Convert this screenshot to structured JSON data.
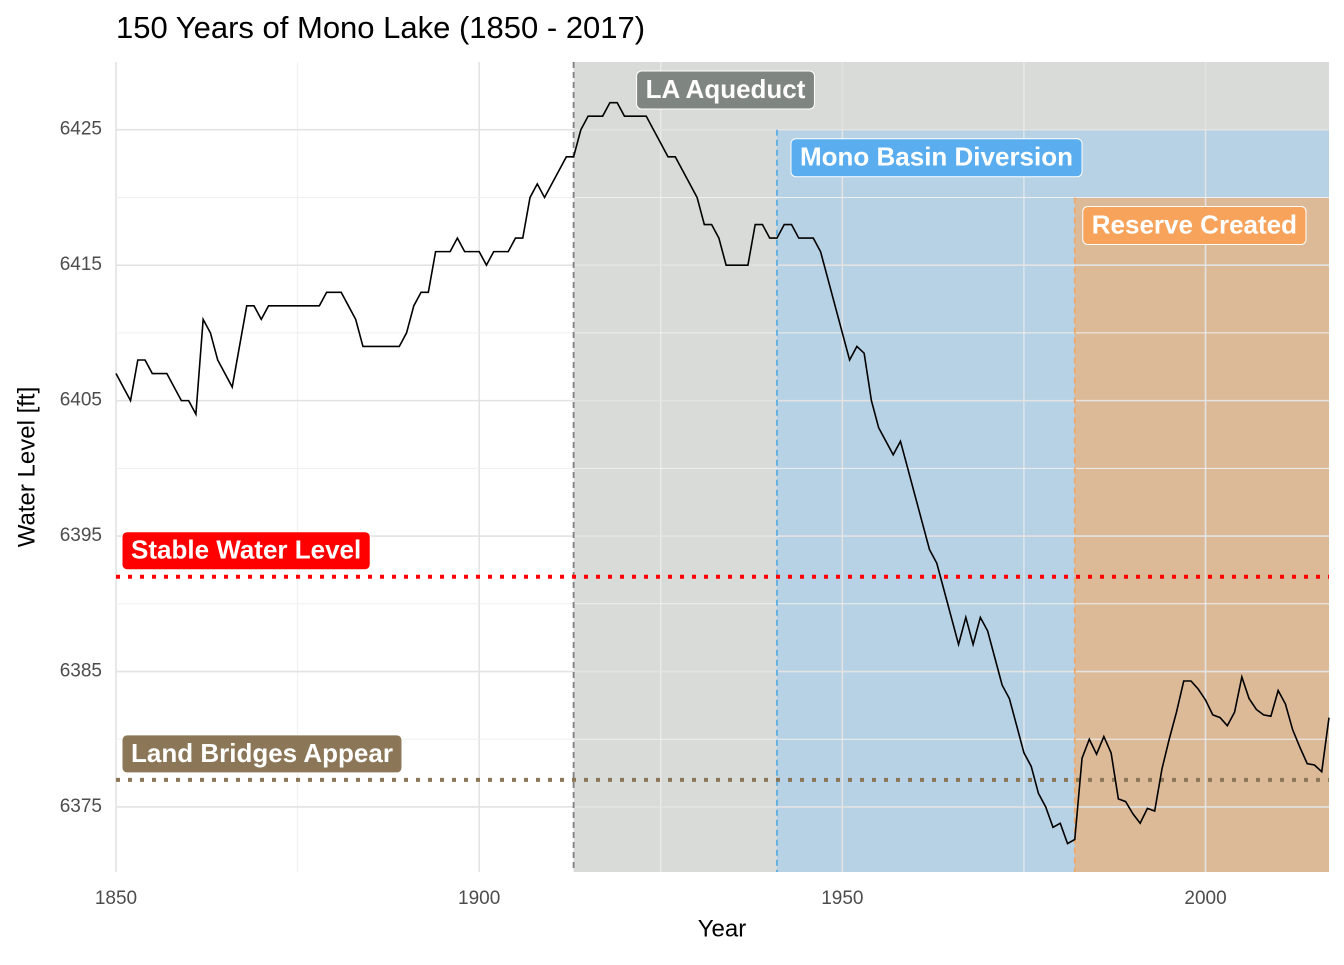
{
  "chart_data": {
    "type": "line",
    "title": "150 Years of Mono Lake (1850 - 2017)",
    "x_label": "Year",
    "y_label": "Water Level [ft]",
    "xlim": [
      1850,
      2017
    ],
    "xticks": [
      1850,
      1900,
      1950,
      2000
    ],
    "ylim": [
      6370.2,
      6430
    ],
    "yticks": [
      6375,
      6385,
      6395,
      6405,
      6415,
      6425
    ],
    "grid": true,
    "regions": [
      {
        "label": "LA Aqueduct",
        "start": 1913,
        "color": "#d9dbd8",
        "line_color": "#7f7f7f",
        "label_color": "#7f8580"
      },
      {
        "label": "Mono Basin Diversion",
        "start": 1941,
        "top": 6425,
        "color": "#b7d1e5",
        "line_color": "#5dade2",
        "label_color": "#5aaef0"
      },
      {
        "label": "Reserve Created",
        "start": 1982,
        "top": 6420,
        "color": "#dcba98",
        "line_color": "#f0a868",
        "label_color": "#f7a35c"
      }
    ],
    "hlines": [
      {
        "label": "Stable Water Level",
        "value": 6392,
        "color": "#ff0000"
      },
      {
        "label": "Land Bridges Appear",
        "value": 6377,
        "color": "#8b7757"
      }
    ],
    "series": [
      {
        "name": "Water Level",
        "color": "#000000",
        "x": [
          1850,
          1851,
          1852,
          1853,
          1854,
          1855,
          1856,
          1857,
          1858,
          1859,
          1860,
          1861,
          1862,
          1863,
          1864,
          1865,
          1866,
          1867,
          1868,
          1869,
          1870,
          1871,
          1872,
          1873,
          1874,
          1875,
          1876,
          1877,
          1878,
          1879,
          1880,
          1881,
          1882,
          1883,
          1884,
          1885,
          1886,
          1887,
          1888,
          1889,
          1890,
          1891,
          1892,
          1893,
          1894,
          1895,
          1896,
          1897,
          1898,
          1899,
          1900,
          1901,
          1902,
          1903,
          1904,
          1905,
          1906,
          1907,
          1908,
          1909,
          1910,
          1911,
          1912,
          1913,
          1914,
          1915,
          1916,
          1917,
          1918,
          1919,
          1920,
          1921,
          1922,
          1923,
          1924,
          1925,
          1926,
          1927,
          1928,
          1929,
          1930,
          1931,
          1932,
          1933,
          1934,
          1935,
          1936,
          1937,
          1938,
          1939,
          1940,
          1941,
          1942,
          1943,
          1944,
          1945,
          1946,
          1947,
          1948,
          1949,
          1950,
          1951,
          1952,
          1953,
          1954,
          1955,
          1956,
          1957,
          1958,
          1959,
          1960,
          1961,
          1962,
          1963,
          1964,
          1965,
          1966,
          1967,
          1968,
          1969,
          1970,
          1971,
          1972,
          1973,
          1974,
          1975,
          1976,
          1977,
          1978,
          1979,
          1980,
          1981,
          1982,
          1983,
          1984,
          1985,
          1986,
          1987,
          1988,
          1989,
          1990,
          1991,
          1992,
          1993,
          1994,
          1995,
          1996,
          1997,
          1998,
          1999,
          2000,
          2001,
          2002,
          2003,
          2004,
          2005,
          2006,
          2007,
          2008,
          2009,
          2010,
          2011,
          2012,
          2013,
          2014,
          2015,
          2016,
          2017
        ],
        "values": [
          6407,
          6406,
          6405,
          6408,
          6408,
          6407,
          6407,
          6407,
          6406,
          6405,
          6405,
          6404,
          6411,
          6410,
          6408,
          6407,
          6406,
          6409,
          6412,
          6412,
          6411,
          6412,
          6412,
          6412,
          6412,
          6412,
          6412,
          6412,
          6412,
          6413,
          6413,
          6413,
          6412,
          6411,
          6409,
          6409,
          6409,
          6409,
          6409,
          6409,
          6410,
          6412,
          6413,
          6413,
          6416,
          6416,
          6416,
          6417,
          6416,
          6416,
          6416,
          6415,
          6416,
          6416,
          6416,
          6417,
          6417,
          6420,
          6421,
          6420,
          6421,
          6422,
          6423,
          6423,
          6425,
          6426,
          6426,
          6426,
          6427,
          6427,
          6426,
          6426,
          6426,
          6426,
          6425,
          6424,
          6423,
          6423,
          6422,
          6421,
          6420,
          6418,
          6418,
          6417,
          6415,
          6415,
          6415,
          6415,
          6418,
          6418,
          6417,
          6417,
          6418,
          6418,
          6417,
          6417,
          6417,
          6416,
          6414,
          6412,
          6410,
          6408,
          6409,
          6408.5,
          6405,
          6403,
          6402,
          6401,
          6402,
          6400,
          6398,
          6396,
          6394,
          6393,
          6391,
          6389,
          6387,
          6389,
          6387,
          6389,
          6388,
          6386,
          6384,
          6383,
          6381,
          6379,
          6378,
          6376,
          6375,
          6373.5,
          6373.8,
          6372.3,
          6372.6,
          6378.6,
          6380,
          6378.9,
          6380.2,
          6379,
          6375.6,
          6375.4,
          6374.5,
          6373.8,
          6374.9,
          6374.7,
          6377.8,
          6380,
          6382,
          6384.3,
          6384.3,
          6383.7,
          6382.9,
          6381.8,
          6381.6,
          6381,
          6382,
          6384.6,
          6383,
          6382.2,
          6381.8,
          6381.7,
          6383.6,
          6382.6,
          6380.7,
          6379.4,
          6378.2,
          6378.1,
          6377.6,
          6381.6
        ]
      }
    ]
  }
}
